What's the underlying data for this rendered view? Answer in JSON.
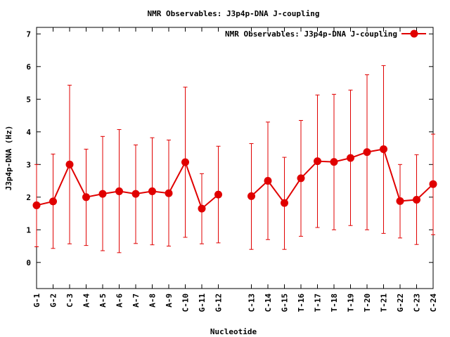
{
  "chart_data": {
    "type": "line",
    "title": "NMR Observables: J3p4p-DNA J-coupling",
    "xlabel": "Nucleotide",
    "ylabel": "J3p4p-DNA (Hz)",
    "ylim": [
      -0.8,
      7.2
    ],
    "yticks": [
      0,
      1,
      2,
      3,
      4,
      5,
      6,
      7
    ],
    "xlim": [
      0,
      24
    ],
    "categories": [
      "G-1",
      "G-2",
      "C-3",
      "A-4",
      "A-5",
      "A-6",
      "A-7",
      "A-8",
      "A-9",
      "C-10",
      "G-11",
      "G-12",
      "C-13",
      "C-14",
      "G-15",
      "T-16",
      "T-17",
      "T-18",
      "T-19",
      "T-20",
      "T-21",
      "G-22",
      "C-23",
      "C-24"
    ],
    "x": [
      0,
      1,
      2,
      3,
      4,
      5,
      6,
      7,
      8,
      9,
      10,
      11,
      13,
      14,
      15,
      16,
      17,
      18,
      19,
      20,
      21,
      22,
      23,
      24
    ],
    "gap_before_index": 12,
    "grid": false,
    "legend_position": "top-right",
    "series": [
      {
        "name": "NMR Observables: J3p4p-DNA J-coupling",
        "color": "#e00000",
        "values": [
          1.75,
          1.87,
          3.0,
          2.0,
          2.1,
          2.18,
          2.1,
          2.18,
          2.12,
          3.07,
          1.65,
          2.08,
          2.03,
          2.5,
          1.82,
          2.58,
          3.1,
          3.08,
          3.2,
          3.38,
          3.47,
          1.88,
          1.92,
          2.4
        ],
        "err_low": [
          0.48,
          0.43,
          0.57,
          0.52,
          0.36,
          0.3,
          0.58,
          0.54,
          0.5,
          0.77,
          0.57,
          0.6,
          0.4,
          0.7,
          0.4,
          0.8,
          1.07,
          1.0,
          1.13,
          1.0,
          0.89,
          0.75,
          0.55,
          0.85
        ],
        "err_high": [
          3.0,
          3.32,
          5.43,
          3.47,
          3.86,
          4.07,
          3.6,
          3.82,
          3.75,
          5.37,
          2.72,
          3.56,
          3.64,
          4.3,
          3.22,
          4.35,
          5.13,
          5.15,
          5.28,
          5.75,
          6.03,
          3.0,
          3.3,
          3.93
        ]
      }
    ]
  }
}
